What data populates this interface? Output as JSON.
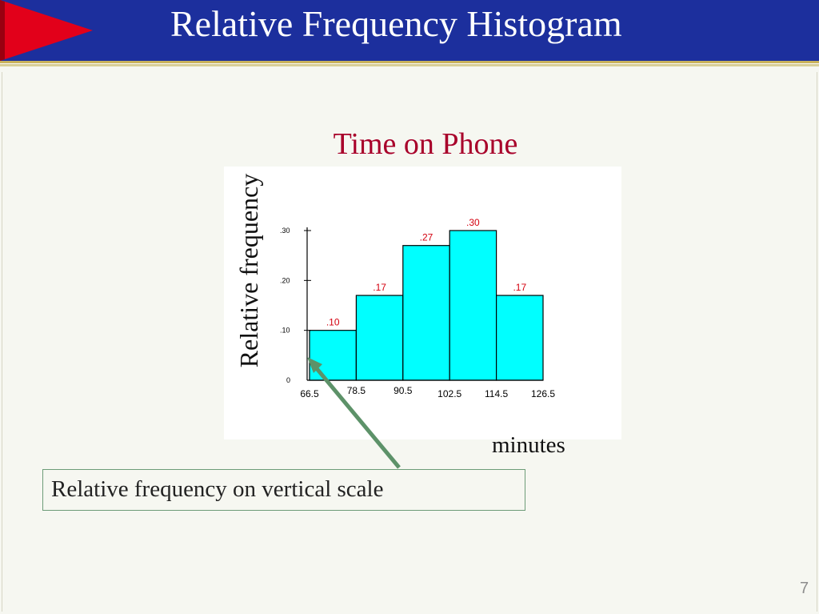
{
  "slide": {
    "title": "Relative Frequency Histogram",
    "page_number": "7",
    "callout_text": "Relative frequency on vertical scale"
  },
  "colors": {
    "header_bg": "#1c2f9d",
    "flag": "#e2001a",
    "bar_fill": "#00ffff",
    "label_red": "#d4000f",
    "title_red": "#a8002a",
    "arrow_green": "#5d9269"
  },
  "chart_data": {
    "type": "bar",
    "title": "Time on Phone",
    "xlabel": "minutes",
    "ylabel": "Relative frequency",
    "bin_edges": [
      66.5,
      78.5,
      90.5,
      102.5,
      114.5,
      126.5
    ],
    "x_tick_labels": [
      "66.5",
      "78.5",
      "90.5",
      "102.5",
      "114.5",
      "126.5"
    ],
    "values": [
      0.1,
      0.17,
      0.27,
      0.3,
      0.17
    ],
    "data_labels": [
      ".10",
      ".17",
      ".27",
      ".30",
      ".17"
    ],
    "y_ticks": [
      0,
      0.1,
      0.2,
      0.3
    ],
    "y_tick_labels": [
      "0",
      ".10",
      ".20",
      ".30"
    ],
    "ylim": [
      0,
      0.3
    ],
    "grid": false,
    "legend": "none"
  }
}
